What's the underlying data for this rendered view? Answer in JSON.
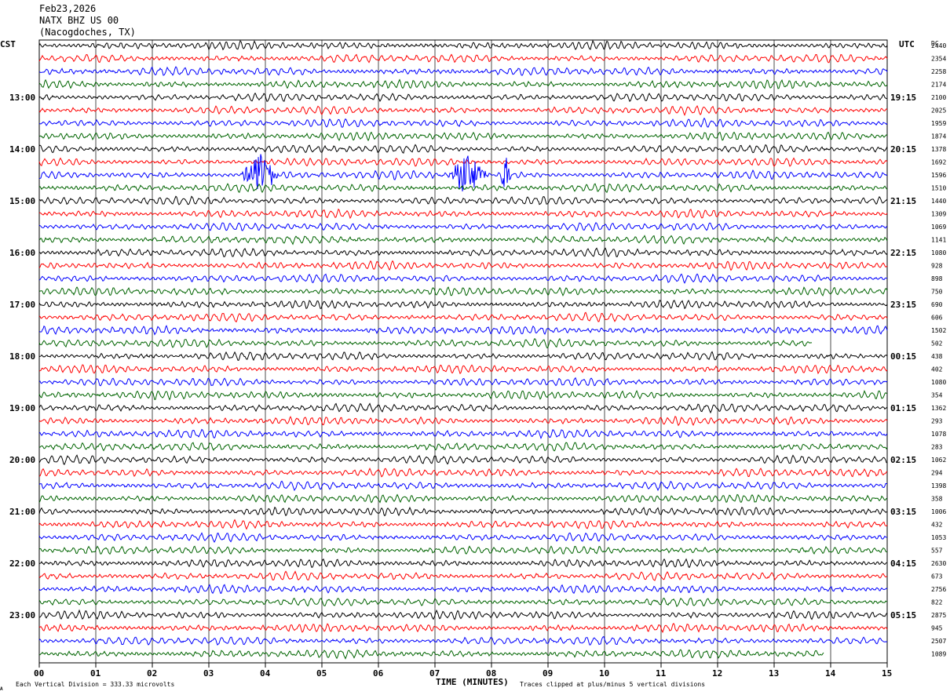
{
  "header": {
    "date": "Feb23,2026",
    "station": "NATX BHZ US 00",
    "location": "(Nacogdoches, TX)"
  },
  "left_tz": "CST",
  "right_tz": "UTC",
  "dc_label": "DC",
  "footer": {
    "scale_note": "Each Vertical Division =  333.33 microvolts",
    "xlabel": "TIME (MINUTES)",
    "clip_note": "Traces clipped at plus/minus 5 vertical divisions",
    "mark": "A"
  },
  "colors": {
    "black": "#000000",
    "red": "#ff0000",
    "blue": "#0000ff",
    "green": "#006400",
    "grid": "#000000"
  },
  "chart_data": {
    "type": "line",
    "title": "",
    "xlabel": "TIME (MINUTES)",
    "xlim": [
      0,
      15
    ],
    "x_ticks": [
      "00",
      "01",
      "02",
      "03",
      "04",
      "05",
      "06",
      "07",
      "08",
      "09",
      "10",
      "11",
      "12",
      "13",
      "14",
      "15"
    ],
    "trace_color_cycle": [
      "black",
      "red",
      "blue",
      "green"
    ],
    "rows_per_hour": 4,
    "row_count": 48,
    "left_hour_labels": [
      "13:00",
      "14:00",
      "15:00",
      "16:00",
      "17:00",
      "18:00",
      "19:00",
      "20:00",
      "21:00",
      "22:00",
      "23:00"
    ],
    "right_hour_labels": [
      "19:15",
      "20:15",
      "21:15",
      "22:15",
      "23:15",
      "00:15",
      "01:15",
      "02:15",
      "03:15",
      "04:15",
      "05:15"
    ],
    "dc_offsets": [
      "2440",
      "2354",
      "2258",
      "2174",
      "2100",
      "2025",
      "1959",
      "1874",
      "1378",
      "1692",
      "1596",
      "1510",
      "1440",
      "1309",
      "1069",
      "1141",
      "1080",
      "928",
      "898",
      "750",
      "690",
      "606",
      "1502",
      "502",
      "438",
      "402",
      "1080",
      "354",
      "1362",
      "293",
      "1078",
      "283",
      "1062",
      "294",
      "1398",
      "358",
      "1006",
      "432",
      "1053",
      "557",
      "2630",
      "673",
      "2756",
      "822",
      "2875",
      "945",
      "2507",
      "1089"
    ],
    "events": [
      {
        "row": 10,
        "x_minutes": [
          3.55,
          4.25
        ],
        "note": "large burst"
      },
      {
        "row": 10,
        "x_minutes": [
          7.2,
          7.95
        ],
        "note": "burst"
      },
      {
        "row": 10,
        "x_minutes": [
          8.15,
          8.35
        ],
        "note": "small burst"
      }
    ],
    "units_note": "Each Vertical Division =  333.33 microvolts"
  }
}
